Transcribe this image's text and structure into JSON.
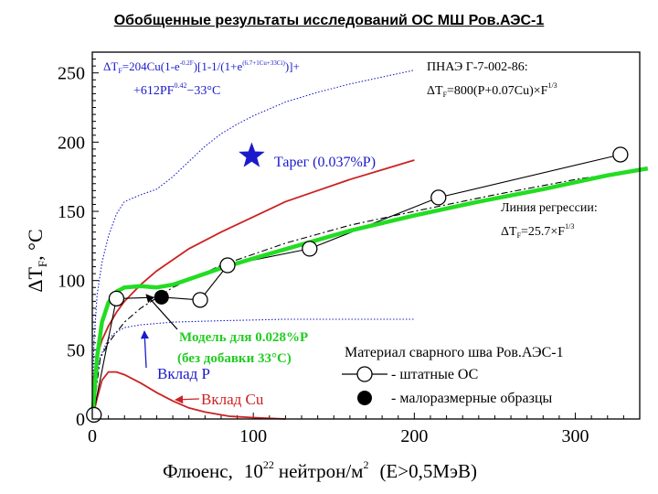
{
  "slide": {
    "title": "Обобщенные результаты исследований ОС МШ Ров.АЭС-1"
  },
  "chart_data": {
    "type": "line",
    "xlabel_main": "Флюенс,",
    "xlabel_base": "10",
    "xlabel_exp": "22",
    "xlabel_unit": "нейтрон/м",
    "xlabel_unit_exp": "2",
    "xlabel_cond": "(E>0,5МэВ)",
    "ylabel_main": "ΔT",
    "ylabel_sub": "F",
    "ylabel_unit": ", °C",
    "xlim": [
      0,
      340
    ],
    "ylim": [
      0,
      265
    ],
    "xticks": [
      0,
      100,
      200,
      300
    ],
    "yticks": [
      0,
      50,
      100,
      150,
      200,
      250
    ],
    "series": [
      {
        "name": "ПНАЭ Г-7-002-86",
        "color": "#cc2222",
        "style": "solid",
        "x": [
          0,
          1,
          3,
          6,
          10,
          15,
          20,
          30,
          40,
          50,
          60,
          80,
          100,
          120,
          140,
          160,
          180,
          200
        ],
        "y": [
          0,
          31,
          45,
          57,
          67,
          77,
          85,
          97,
          107,
          115,
          123,
          135,
          146,
          157,
          165,
          173,
          180,
          187
        ]
      },
      {
        "name": "",
        "color": "#1a1acc",
        "style": "dotted",
        "x": [
          0,
          1,
          3,
          6,
          10,
          15,
          20,
          30,
          40,
          50,
          60,
          70,
          80,
          90,
          100,
          120,
          140,
          160,
          180,
          200
        ],
        "y": [
          0,
          55,
          90,
          113,
          132,
          148,
          157,
          162,
          166,
          175,
          186,
          197,
          206,
          213,
          219,
          229,
          236,
          242,
          247,
          252
        ]
      },
      {
        "name": "Модель для 0.028%Р (без добавки 33°C)",
        "color": "#22dd22",
        "style": "thick",
        "x": [
          0,
          3,
          6,
          10,
          15,
          20,
          30,
          40,
          50,
          60,
          80,
          100,
          130,
          160,
          200,
          240,
          280,
          320,
          345
        ],
        "y": [
          0,
          45,
          70,
          84,
          92,
          95,
          96,
          95,
          97,
          101,
          109,
          116,
          126,
          136,
          147,
          157,
          166,
          176,
          181
        ]
      },
      {
        "name": "",
        "color": "#000000",
        "style": "dashdot",
        "x": [
          0,
          5,
          10,
          20,
          30,
          50,
          80,
          120,
          160,
          200,
          250,
          300,
          345
        ],
        "y": [
          0,
          44,
          55,
          70,
          80,
          95,
          111,
          127,
          140,
          150,
          162,
          173,
          181
        ]
      },
      {
        "name": "Вклад P",
        "color": "#1a1acc",
        "style": "dotted",
        "x": [
          0,
          2,
          5,
          10,
          15,
          20,
          30,
          50,
          80,
          120,
          200
        ],
        "y": [
          0,
          25,
          45,
          58,
          63,
          66,
          68,
          70,
          71,
          72,
          72
        ]
      },
      {
        "name": "Вклад Cu",
        "color": "#cc2222",
        "style": "solid",
        "x": [
          0,
          3,
          6,
          10,
          15,
          20,
          30,
          40,
          50,
          60,
          70,
          85,
          100,
          120
        ],
        "y": [
          0,
          15,
          28,
          34,
          34,
          32,
          26,
          19,
          13,
          8,
          5,
          2,
          1,
          0
        ]
      },
      {
        "name": "Линия регрессии",
        "color": "#000000",
        "style": "thin",
        "x": [
          0,
          15,
          43,
          67,
          84,
          135,
          215,
          328
        ],
        "y": [
          0,
          87,
          88,
          86,
          111,
          123,
          160,
          191
        ]
      }
    ],
    "points_open": {
      "name": "- штатные ОС",
      "x": [
        1,
        15,
        67,
        84,
        135,
        215,
        328
      ],
      "y": [
        3,
        87,
        86,
        111,
        123,
        160,
        191
      ]
    },
    "points_filled": {
      "name": "- малоразмерные образцы",
      "x": [
        43
      ],
      "y": [
        88
      ]
    },
    "target": {
      "label": "Тарег (0.037%P)",
      "x": 99,
      "y": 190,
      "color": "#1a1acc"
    },
    "annotations": {
      "formula_left_1": "ΔTF=204Cu(1-e-0.2F)[1-1/(1+e(6.7+1Cu+33Ci))]+",
      "formula_left_2": "+612PF0.42−33°C",
      "pnae_1": "ПНАЭ Г-7-002-86:",
      "pnae_2": "ΔTF=800(P+0.07Cu)×F1/3",
      "regression_1": "Линия регрессии:",
      "regression_2": "ΔTF=25.7×F1/3",
      "model_1": "Модель для 0.028%Р",
      "model_2": "(без добавки 33°C)",
      "legend_title": "Материал сварного шва Ров.АЭС-1"
    }
  }
}
